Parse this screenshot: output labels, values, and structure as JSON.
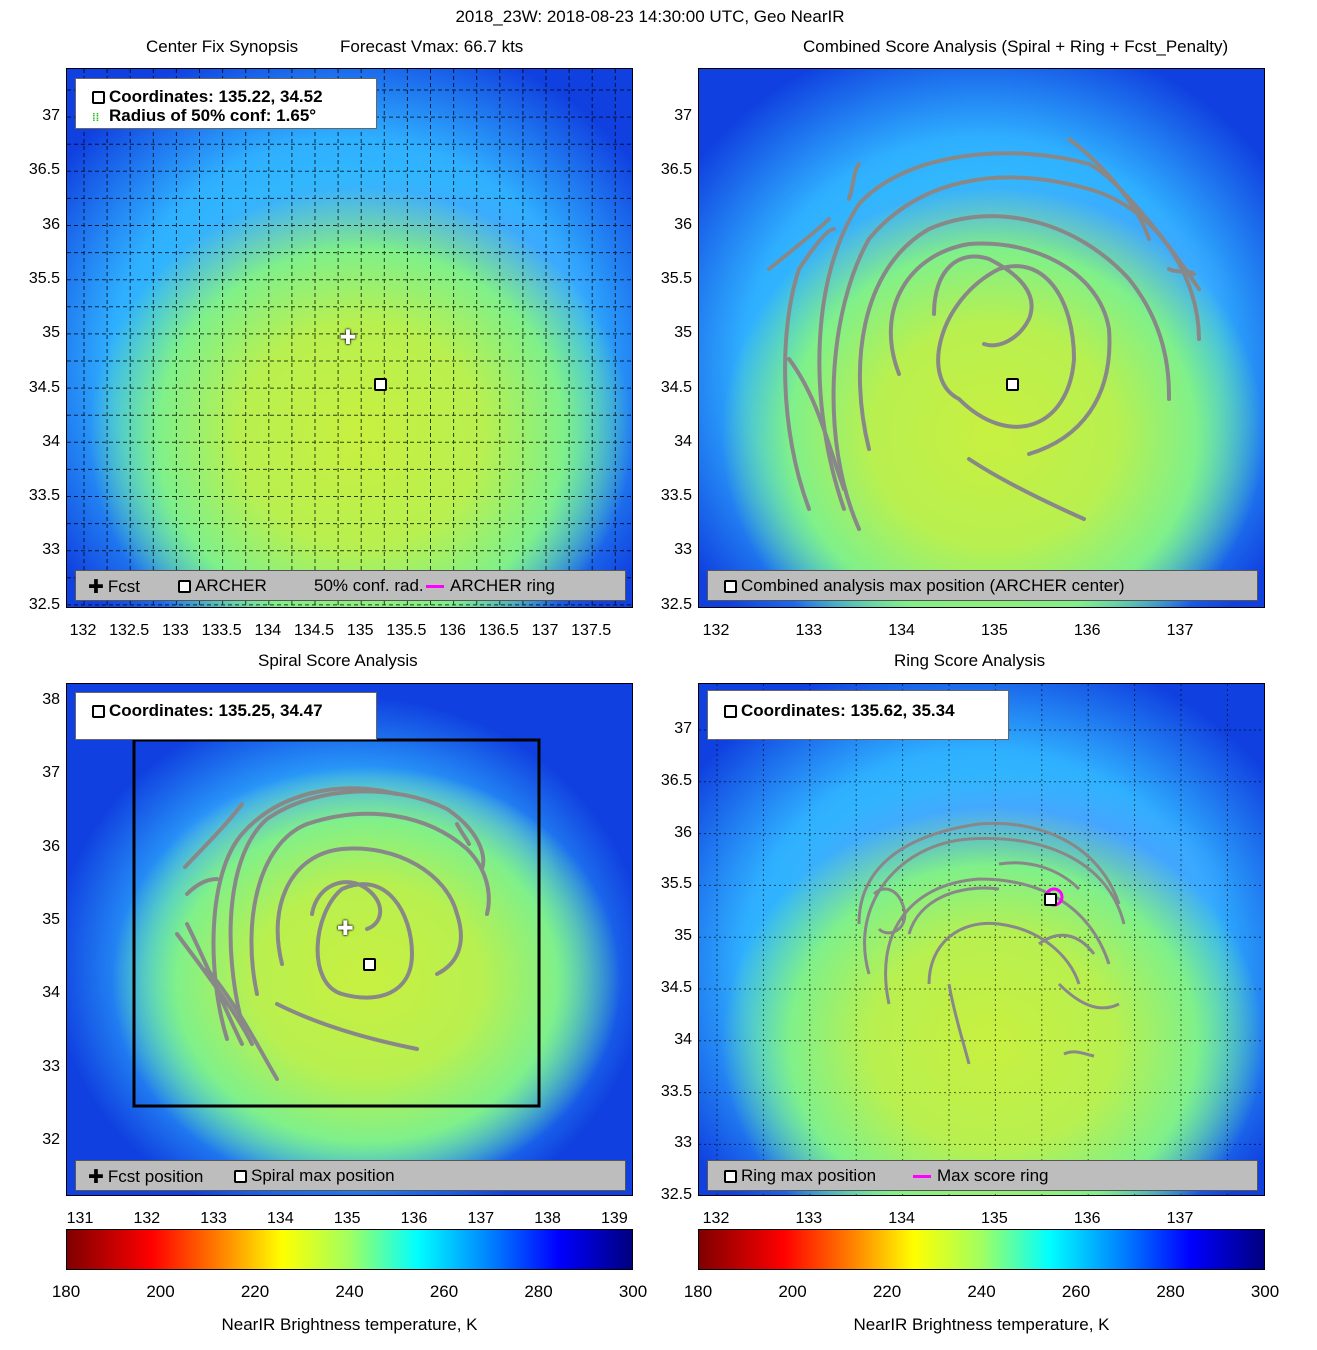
{
  "header": {
    "title": "2018_23W: 2018-08-23 14:30:00 UTC, Geo NearIR"
  },
  "panels": {
    "p1": {
      "title": "Center Fix Synopsis",
      "subtitle": "Forecast Vmax: 66.7 kts",
      "info_line1": "Coordinates: 135.22, 34.52",
      "info_line2": "Radius of 50% conf: 1.65°",
      "legend": {
        "fcst": "Fcst",
        "archer": "ARCHER",
        "conf": "50% conf. rad.",
        "ring": "ARCHER ring"
      },
      "yticks": [
        "37",
        "36.5",
        "36",
        "35.5",
        "35",
        "34.5",
        "34",
        "33.5",
        "33",
        "32.5"
      ],
      "xticks": [
        "132",
        "132.5",
        "133",
        "133.5",
        "134",
        "134.5",
        "135",
        "135.5",
        "136",
        "136.5",
        "137",
        "137.5"
      ]
    },
    "p2": {
      "title": "Combined Score Analysis (Spiral + Ring + Fcst_Penalty)",
      "legend": {
        "combined": "Combined analysis max position (ARCHER center)"
      },
      "yticks": [
        "37",
        "36.5",
        "36",
        "35.5",
        "35",
        "34.5",
        "34",
        "33.5",
        "33",
        "32.5"
      ],
      "xticks": [
        "132",
        "133",
        "134",
        "135",
        "136",
        "137"
      ]
    },
    "p3": {
      "title": "Spiral Score Analysis",
      "info_line1": "Coordinates: 135.25, 34.47",
      "legend": {
        "fcst": "Fcst position",
        "spiral": "Spiral max position"
      },
      "yticks": [
        "38",
        "37",
        "36",
        "35",
        "34",
        "33",
        "32"
      ],
      "xticks": [
        "131",
        "132",
        "133",
        "134",
        "135",
        "136",
        "137",
        "138",
        "139"
      ]
    },
    "p4": {
      "title": "Ring Score Analysis",
      "info_line1": "Coordinates: 135.62, 35.34",
      "legend": {
        "ring": "Ring max position",
        "maxring": "Max score ring"
      },
      "yticks": [
        "37",
        "36.5",
        "36",
        "35.5",
        "35",
        "34.5",
        "34",
        "33.5",
        "33",
        "32.5"
      ],
      "xticks": [
        "132",
        "133",
        "134",
        "135",
        "136",
        "137"
      ]
    }
  },
  "colorbar": {
    "ticks": [
      "180",
      "200",
      "220",
      "240",
      "260",
      "280",
      "300"
    ],
    "label": "NearIR Brightness temperature, K"
  },
  "chart_data": [
    {
      "type": "heatmap",
      "title": "Center Fix Synopsis",
      "subtitle": "Forecast Vmax: 66.7 kts",
      "xlim": [
        131.9,
        137.9
      ],
      "ylim": [
        32.45,
        37.45
      ],
      "points": [
        {
          "name": "Fcst",
          "x": 134.88,
          "y": 34.95
        },
        {
          "name": "ARCHER",
          "x": 135.22,
          "y": 34.52
        }
      ],
      "conf_radius_deg": 1.65,
      "grid": true
    },
    {
      "type": "heatmap",
      "title": "Combined Score Analysis (Spiral + Ring + Fcst_Penalty)",
      "xlim": [
        131.9,
        137.9
      ],
      "ylim": [
        32.45,
        37.45
      ],
      "points": [
        {
          "name": "Combined analysis max position (ARCHER center)",
          "x": 135.22,
          "y": 34.52
        }
      ]
    },
    {
      "type": "heatmap",
      "title": "Spiral Score Analysis",
      "xlim": [
        130.6,
        139.3
      ],
      "ylim": [
        31.3,
        38.3
      ],
      "points": [
        {
          "name": "Fcst position",
          "x": 134.88,
          "y": 34.95
        },
        {
          "name": "Spiral max position",
          "x": 135.25,
          "y": 34.47
        }
      ],
      "box": {
        "x": [
          131.6,
          138.0
        ],
        "y": [
          32.5,
          37.5
        ]
      }
    },
    {
      "type": "heatmap",
      "title": "Ring Score Analysis",
      "xlim": [
        131.9,
        137.9
      ],
      "ylim": [
        32.45,
        37.45
      ],
      "points": [
        {
          "name": "Ring max position",
          "x": 135.62,
          "y": 35.34
        }
      ]
    }
  ]
}
